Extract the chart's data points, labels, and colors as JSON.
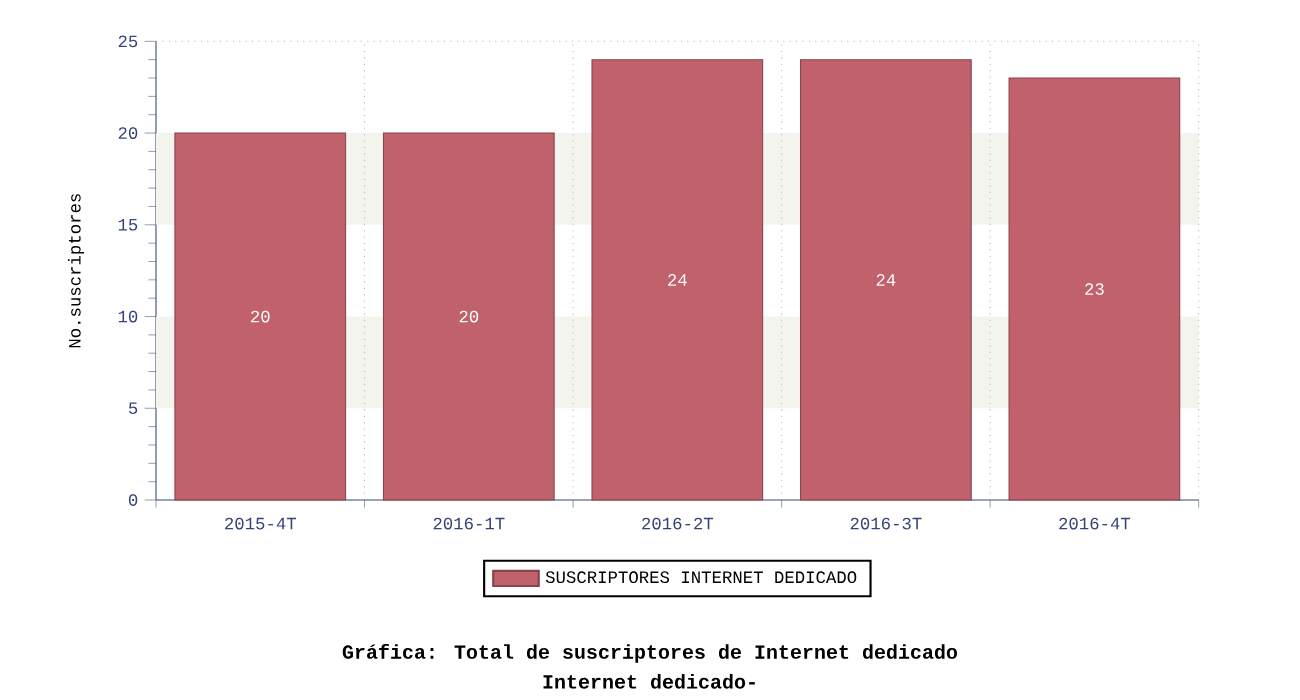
{
  "chart_data": {
    "type": "bar",
    "title": "Gráfica: Total de suscriptores de Internet dedicado",
    "subtitle": "Internet dedicado-",
    "ylabel": "No.suscriptores",
    "categories": [
      "2015-4T",
      "2016-1T",
      "2016-2T",
      "2016-3T",
      "2016-4T"
    ],
    "series": [
      {
        "name": "SUSCRIPTORES INTERNET DEDICADO",
        "color": "#c0616b",
        "values": [
          20,
          20,
          24,
          24,
          23
        ]
      }
    ],
    "ylim": [
      0,
      25
    ],
    "yticks": [
      0,
      5,
      10,
      15,
      20,
      25
    ],
    "bands": [
      {
        "axis": "y",
        "from": 5,
        "to": 10,
        "color": "#f4f4ef"
      },
      {
        "axis": "y",
        "from": 15,
        "to": 20,
        "color": "#f4f4ef"
      }
    ],
    "data_labels": true,
    "legend": "bottom"
  }
}
